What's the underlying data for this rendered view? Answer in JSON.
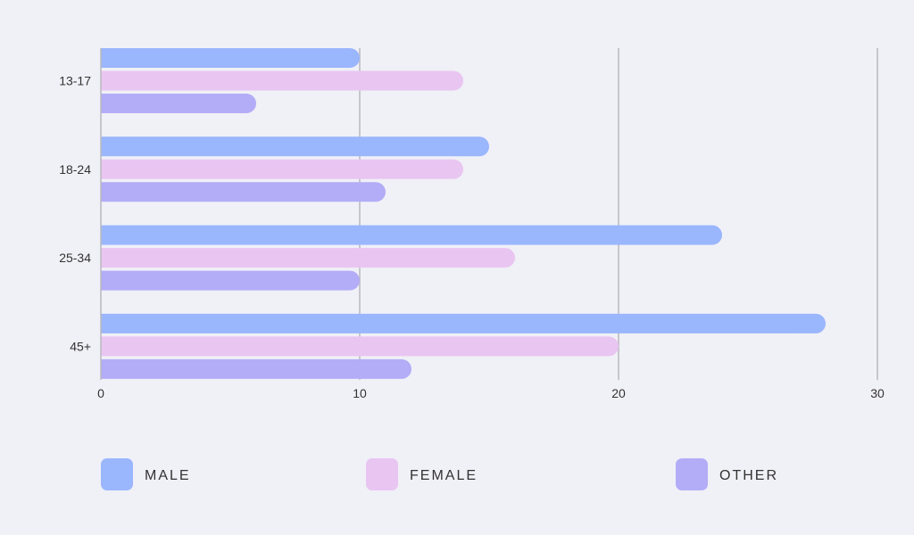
{
  "chart_data": {
    "type": "bar",
    "orientation": "horizontal",
    "title": "",
    "xlabel": "",
    "ylabel": "",
    "categories": [
      "13-17",
      "18-24",
      "25-34",
      "45+"
    ],
    "series": [
      {
        "name": "MALE",
        "color": "#9ab6fd",
        "values": [
          10,
          15,
          24,
          28
        ]
      },
      {
        "name": "FEMALE",
        "color": "#e9c5f1",
        "values": [
          14,
          14,
          16,
          20
        ]
      },
      {
        "name": "OTHER",
        "color": "#b3adf7",
        "values": [
          6,
          11,
          10,
          12
        ]
      }
    ],
    "xlim": [
      0,
      30
    ],
    "xticks": [
      0,
      10,
      20,
      30
    ],
    "grid": true,
    "legend_position": "bottom"
  }
}
